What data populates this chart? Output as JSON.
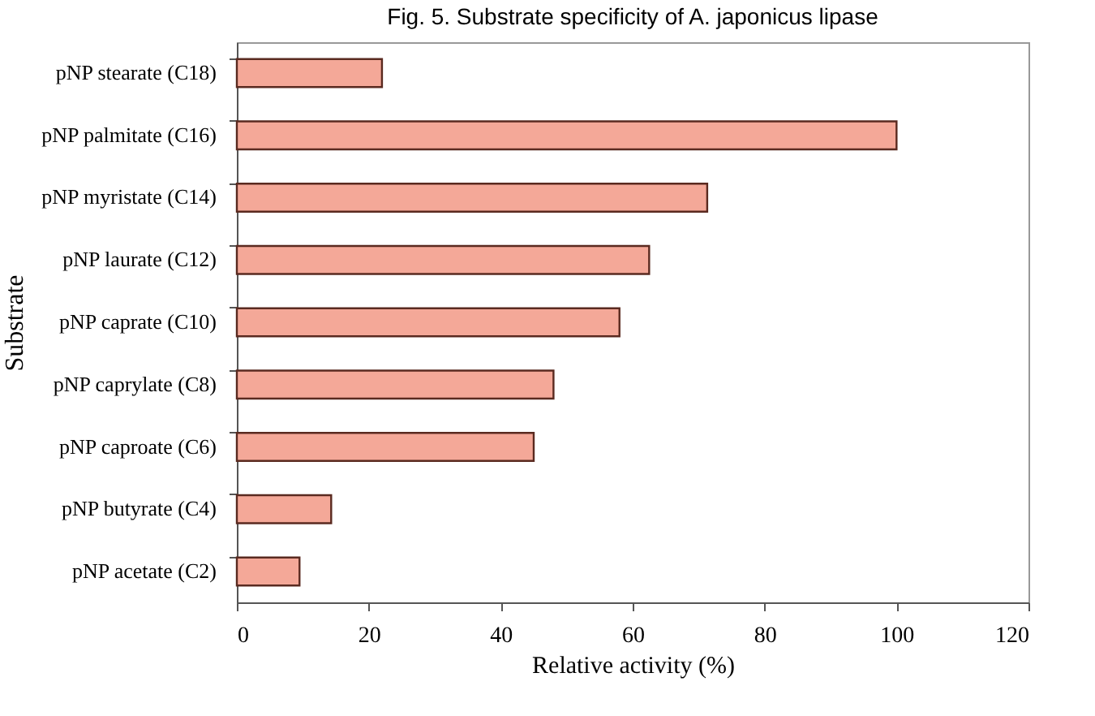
{
  "chart_data": {
    "type": "bar",
    "orientation": "horizontal",
    "title": "Fig. 5. Substrate specificity of A. japonicus lipase",
    "xlabel": "Relative activity (%)",
    "ylabel": "Substrate",
    "categories": [
      "pNP stearate (C18)",
      "pNP palmitate (C16)",
      "pNP myristate (C14)",
      "pNP laurate (C12)",
      "pNP caprate (C10)",
      "pNP caprylate (C8)",
      "pNP caproate (C6)",
      "pNP butyrate (C4)",
      "pNP acetate (C2)"
    ],
    "values": [
      22,
      100,
      71.3,
      62.5,
      58,
      48,
      45,
      14.3,
      9.5
    ],
    "color": "#f4a898",
    "xlim": [
      0,
      120
    ],
    "xticks": [
      0,
      20,
      40,
      60,
      80,
      100,
      120
    ],
    "grid": false
  }
}
